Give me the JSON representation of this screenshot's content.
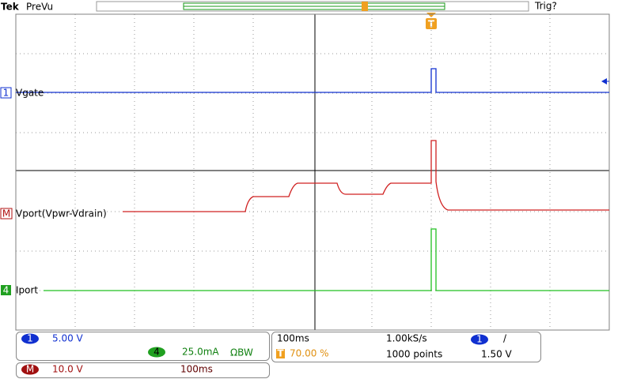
{
  "header": {
    "brand": "Tek",
    "status": "PreVu",
    "trigger_state": "Trig?"
  },
  "markers": {
    "trigger": "T"
  },
  "channels": [
    {
      "marker": "1",
      "label": "Vgate"
    },
    {
      "marker": "M",
      "label": "Vport(Vpwr-Vdrain)"
    },
    {
      "marker": "4",
      "label": "Iport"
    }
  ],
  "readouts": {
    "ch1": {
      "badge": "1",
      "scale": "5.00 V"
    },
    "ch4": {
      "badge": "4",
      "scale": "25.0mA",
      "bandwidth": "ΩBW"
    },
    "math": {
      "badge": "M",
      "scale": "10.0 V",
      "time": "100ms"
    },
    "timebase": {
      "scale": "100ms",
      "sample_rate": "1.00kS/s",
      "trigger_icon": "T",
      "trigger_position": "70.00 %",
      "record_length": "1000 points"
    },
    "trigger": {
      "source": "1",
      "slope": "/",
      "level": "1.50 V"
    }
  }
}
